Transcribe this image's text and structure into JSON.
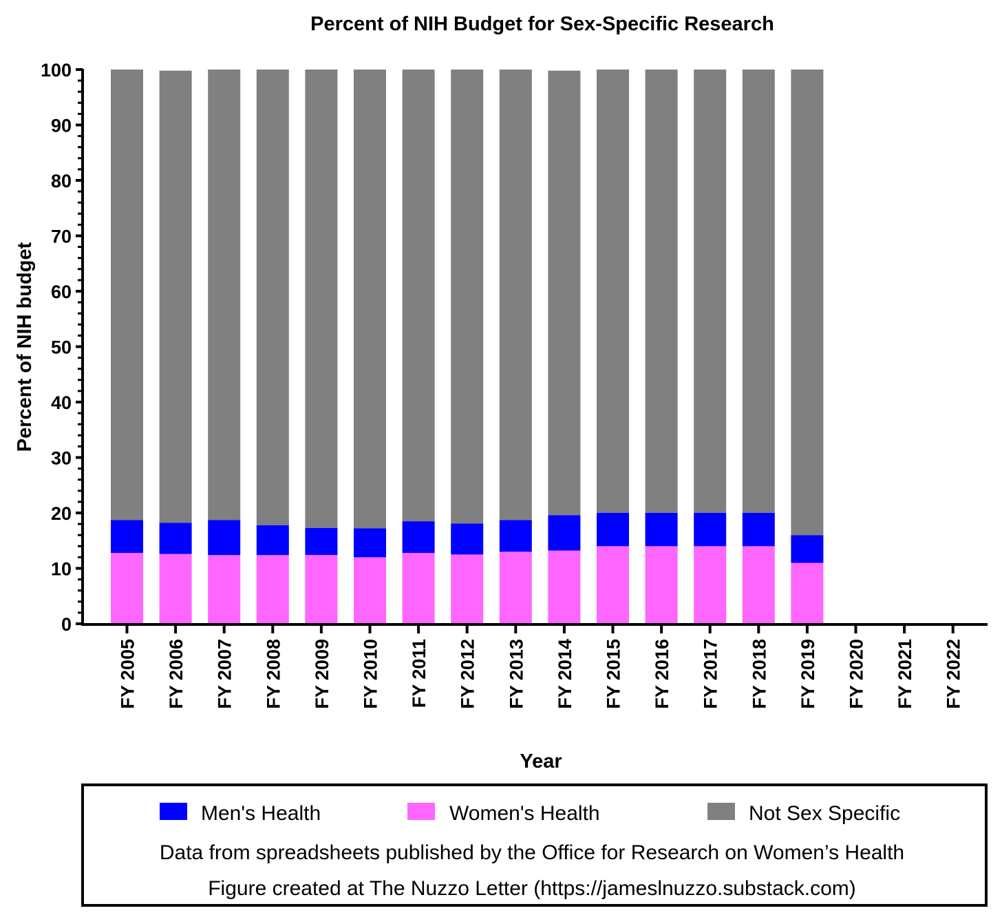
{
  "chart_data": {
    "type": "bar",
    "stacked": true,
    "title": "Percent of NIH Budget for Sex-Specific Research",
    "xlabel": "Year",
    "ylabel": "Percent of NIH budget",
    "ylim": [
      0,
      100
    ],
    "yticks": [
      0,
      10,
      20,
      30,
      40,
      50,
      60,
      70,
      80,
      90,
      100
    ],
    "grid": false,
    "legend_position": "bottom",
    "categories": [
      "FY 2005",
      "FY 2006",
      "FY 2007",
      "FY 2008",
      "FY 2009",
      "FY 2010",
      "FY 2011",
      "FY 2012",
      "FY 2013",
      "FY 2014",
      "FY 2015",
      "FY 2016",
      "FY 2017",
      "FY 2018",
      "FY 2019",
      "FY 2020",
      "FY 2021",
      "FY 2022"
    ],
    "series": [
      {
        "name": "Women's Health",
        "color": "#ff66ff",
        "values": [
          12.8,
          12.6,
          12.4,
          12.4,
          12.4,
          12.0,
          12.8,
          12.5,
          13.0,
          13.2,
          14.0,
          14.0,
          14.0,
          14.0,
          11.0,
          null,
          null,
          null
        ]
      },
      {
        "name": "Men's Health",
        "color": "#0000ff",
        "values": [
          5.9,
          5.6,
          6.3,
          5.4,
          4.9,
          5.2,
          5.7,
          5.6,
          5.7,
          6.4,
          6.0,
          6.0,
          6.0,
          6.0,
          5.0,
          null,
          null,
          null
        ]
      },
      {
        "name": "Not Sex Specific",
        "color": "#808080",
        "values": [
          81.3,
          81.6,
          81.3,
          82.2,
          82.7,
          82.8,
          81.5,
          81.9,
          81.3,
          80.2,
          80.0,
          80.0,
          80.0,
          80.0,
          84.0,
          null,
          null,
          null
        ]
      }
    ],
    "legend_order": [
      "Men's Health",
      "Women's Health",
      "Not Sex Specific"
    ],
    "notes": [
      "Data from spreadsheets published by the Office for Research on Women’s Health",
      "Figure created at The Nuzzo Letter (https://jameslnuzzo.substack.com)"
    ]
  }
}
